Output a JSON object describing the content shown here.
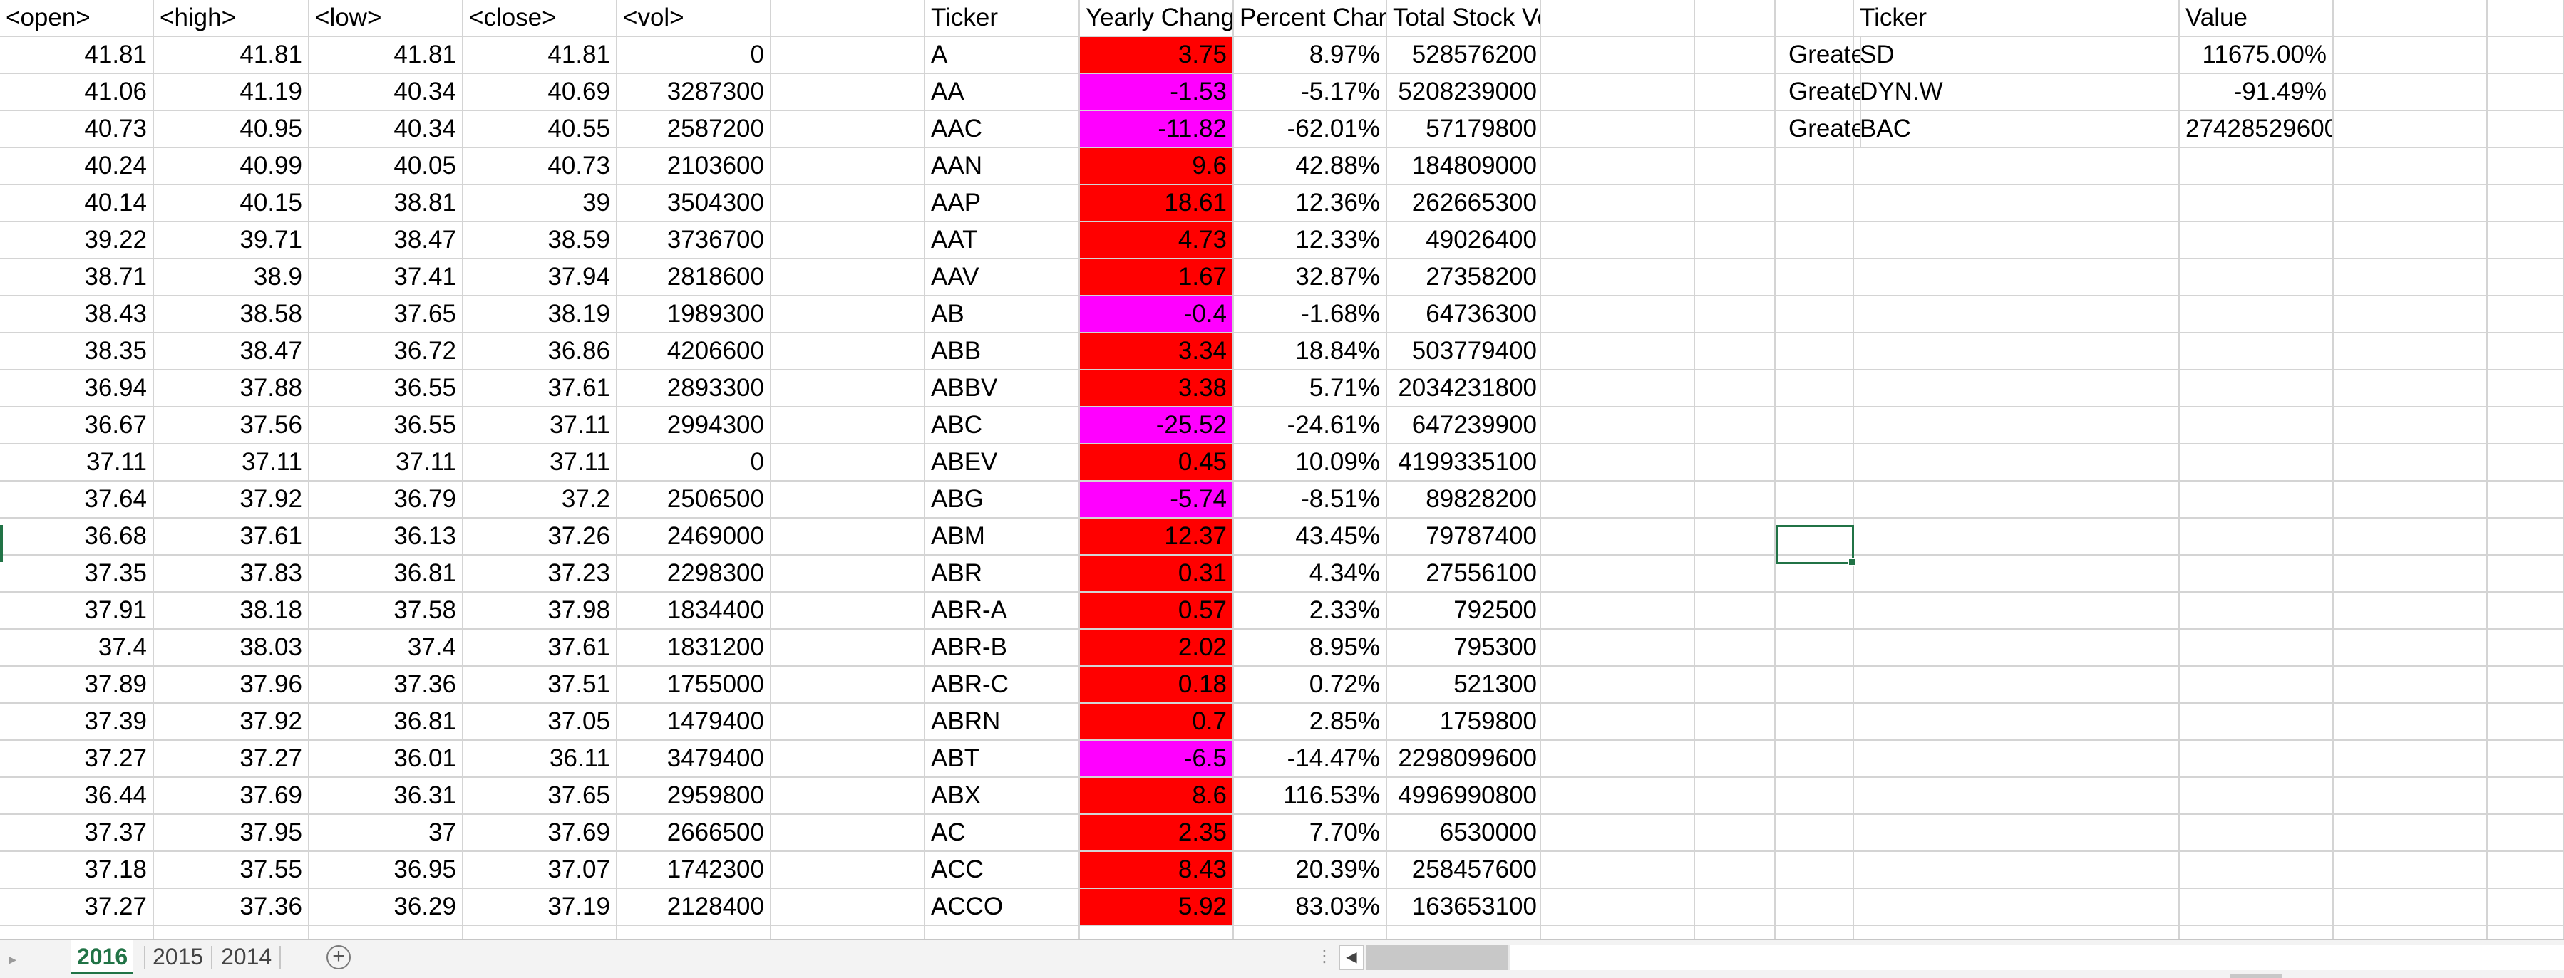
{
  "headers": [
    "<open>",
    "<high>",
    "<low>",
    "<close>",
    "<vol>",
    "",
    "Ticker",
    "Yearly Chang",
    "Percent Char",
    "Total Stock Volume"
  ],
  "rows": [
    [
      "41.81",
      "41.81",
      "41.81",
      "41.81",
      "0",
      "A",
      "3.75",
      "8.97%",
      "528576200"
    ],
    [
      "41.06",
      "41.19",
      "40.34",
      "40.69",
      "3287300",
      "AA",
      "-1.53",
      "-5.17%",
      "5208239000"
    ],
    [
      "40.73",
      "40.95",
      "40.34",
      "40.55",
      "2587200",
      "AAC",
      "-11.82",
      "-62.01%",
      "57179800"
    ],
    [
      "40.24",
      "40.99",
      "40.05",
      "40.73",
      "2103600",
      "AAN",
      "9.6",
      "42.88%",
      "184809000"
    ],
    [
      "40.14",
      "40.15",
      "38.81",
      "39",
      "3504300",
      "AAP",
      "18.61",
      "12.36%",
      "262665300"
    ],
    [
      "39.22",
      "39.71",
      "38.47",
      "38.59",
      "3736700",
      "AAT",
      "4.73",
      "12.33%",
      "49026400"
    ],
    [
      "38.71",
      "38.9",
      "37.41",
      "37.94",
      "2818600",
      "AAV",
      "1.67",
      "32.87%",
      "27358200"
    ],
    [
      "38.43",
      "38.58",
      "37.65",
      "38.19",
      "1989300",
      "AB",
      "-0.4",
      "-1.68%",
      "64736300"
    ],
    [
      "38.35",
      "38.47",
      "36.72",
      "36.86",
      "4206600",
      "ABB",
      "3.34",
      "18.84%",
      "503779400"
    ],
    [
      "36.94",
      "37.88",
      "36.55",
      "37.61",
      "2893300",
      "ABBV",
      "3.38",
      "5.71%",
      "2034231800"
    ],
    [
      "36.67",
      "37.56",
      "36.55",
      "37.11",
      "2994300",
      "ABC",
      "-25.52",
      "-24.61%",
      "647239900"
    ],
    [
      "37.11",
      "37.11",
      "37.11",
      "37.11",
      "0",
      "ABEV",
      "0.45",
      "10.09%",
      "4199335100"
    ],
    [
      "37.64",
      "37.92",
      "36.79",
      "37.2",
      "2506500",
      "ABG",
      "-5.74",
      "-8.51%",
      "89828200"
    ],
    [
      "36.68",
      "37.61",
      "36.13",
      "37.26",
      "2469000",
      "ABM",
      "12.37",
      "43.45%",
      "79787400"
    ],
    [
      "37.35",
      "37.83",
      "36.81",
      "37.23",
      "2298300",
      "ABR",
      "0.31",
      "4.34%",
      "27556100"
    ],
    [
      "37.91",
      "38.18",
      "37.58",
      "37.98",
      "1834400",
      "ABR-A",
      "0.57",
      "2.33%",
      "792500"
    ],
    [
      "37.4",
      "38.03",
      "37.4",
      "37.61",
      "1831200",
      "ABR-B",
      "2.02",
      "8.95%",
      "795300"
    ],
    [
      "37.89",
      "37.96",
      "37.36",
      "37.51",
      "1755000",
      "ABR-C",
      "0.18",
      "0.72%",
      "521300"
    ],
    [
      "37.39",
      "37.92",
      "36.81",
      "37.05",
      "1479400",
      "ABRN",
      "0.7",
      "2.85%",
      "1759800"
    ],
    [
      "37.27",
      "37.27",
      "36.01",
      "36.11",
      "3479400",
      "ABT",
      "-6.5",
      "-14.47%",
      "2298099600"
    ],
    [
      "36.44",
      "37.69",
      "36.31",
      "37.65",
      "2959800",
      "ABX",
      "8.6",
      "116.53%",
      "4996990800"
    ],
    [
      "37.37",
      "37.95",
      "37",
      "37.69",
      "2666500",
      "AC",
      "2.35",
      "7.70%",
      "6530000"
    ],
    [
      "37.18",
      "37.55",
      "36.95",
      "37.07",
      "1742300",
      "ACC",
      "8.43",
      "20.39%",
      "258457600"
    ],
    [
      "37.27",
      "37.36",
      "36.29",
      "37.19",
      "2128400",
      "ACCO",
      "5.92",
      "83.03%",
      "163653100"
    ]
  ],
  "summary": {
    "headers": [
      "Ticker",
      "Value"
    ],
    "rows": [
      [
        "Greatest Percent Increase",
        "SD",
        "11675.00%"
      ],
      [
        "Greatest Percent Decrease",
        "DYN.W",
        "-91.49%"
      ],
      [
        "Greatest Total Volume",
        "BAC",
        "27428529600"
      ]
    ]
  },
  "sheet_tabs": [
    "2016",
    "2015",
    "2014"
  ],
  "active_tab": "2016",
  "colors": {
    "positive_change": "#ff0000",
    "negative_change": "#ff00ff",
    "accent": "#217346"
  },
  "icons": {
    "add_sheet": "plus-circle-icon",
    "scroll_left": "triangle-left-icon",
    "nav_left": "triangle-left-icon"
  },
  "glyphs": {
    "add_sheet": "+",
    "scroll_left": "◀",
    "nav_left": "▸",
    "split_dots": "⋮"
  }
}
